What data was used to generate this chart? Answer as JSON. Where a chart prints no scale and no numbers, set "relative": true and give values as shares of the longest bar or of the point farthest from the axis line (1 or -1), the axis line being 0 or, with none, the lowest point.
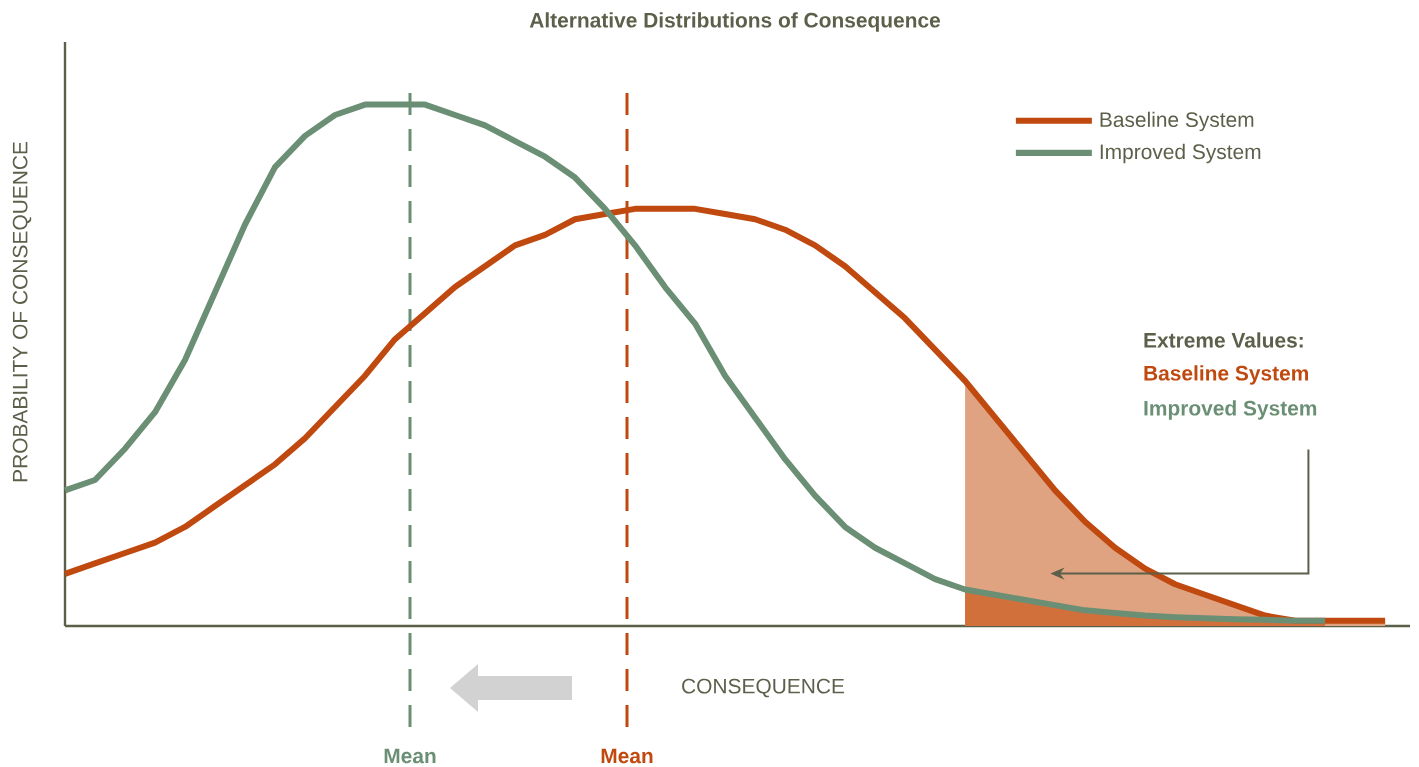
{
  "chart_data": {
    "type": "line",
    "relative": true,
    "title": "Alternative Distributions of Consequence",
    "xlabel": "CONSEQUENCE",
    "ylabel": "PROBABILITY OF CONSEQUENCE",
    "legend": "top right",
    "categories": [
      null,
      null,
      null,
      null,
      null,
      null,
      null,
      null,
      null,
      null,
      null,
      null,
      null,
      null,
      null,
      null,
      null,
      null,
      null,
      null,
      null,
      null,
      null,
      null,
      null,
      null,
      null,
      null,
      null,
      null,
      null,
      null,
      null,
      null,
      null,
      null,
      null,
      null,
      null,
      null,
      null,
      null,
      null,
      null,
      null
    ],
    "series": [
      {
        "type": "area",
        "color": "#e0a382",
        "values": [
          null,
          null,
          null,
          null,
          null,
          null,
          null,
          null,
          null,
          null,
          null,
          null,
          null,
          null,
          null,
          null,
          null,
          null,
          null,
          null,
          null,
          null,
          null,
          null,
          null,
          null,
          null,
          null,
          null,
          null,
          0.47,
          0.4,
          0.33,
          0.26,
          0.2,
          0.15,
          0.11,
          0.08,
          0.06,
          0.04,
          0.02,
          0.01,
          0.01,
          0.01,
          0.01
        ]
      },
      {
        "type": "area",
        "color": "#d2703c",
        "values": [
          null,
          null,
          null,
          null,
          null,
          null,
          null,
          null,
          null,
          null,
          null,
          null,
          null,
          null,
          null,
          null,
          null,
          null,
          null,
          null,
          null,
          null,
          null,
          null,
          null,
          null,
          null,
          null,
          null,
          null,
          0.07,
          0.06,
          0.05,
          0.04,
          0.03,
          0.025,
          0.02,
          0.017,
          0.015,
          0.013,
          0.012,
          0.01,
          0.01,
          null,
          null
        ]
      },
      {
        "name": "Baseline System",
        "color": "#c0490f",
        "values": [
          0.1,
          0.12,
          0.14,
          0.16,
          0.19,
          0.23,
          0.27,
          0.31,
          0.36,
          0.42,
          0.48,
          0.55,
          0.6,
          0.65,
          0.69,
          0.73,
          0.75,
          0.78,
          0.79,
          0.8,
          0.8,
          0.8,
          0.79,
          0.78,
          0.76,
          0.73,
          0.69,
          0.64,
          0.59,
          0.53,
          0.47,
          0.4,
          0.33,
          0.26,
          0.2,
          0.15,
          0.11,
          0.08,
          0.06,
          0.04,
          0.02,
          0.01,
          0.01,
          0.01,
          0.01
        ]
      },
      {
        "name": "Improved System",
        "color": "#6b8f74",
        "values": [
          0.26,
          0.28,
          0.34,
          0.41,
          0.51,
          0.64,
          0.77,
          0.88,
          0.94,
          0.98,
          1.0,
          1.0,
          1.0,
          0.98,
          0.96,
          0.93,
          0.9,
          0.86,
          0.8,
          0.73,
          0.65,
          0.58,
          0.48,
          0.4,
          0.32,
          0.25,
          0.19,
          0.15,
          0.12,
          0.09,
          0.07,
          0.06,
          0.05,
          0.04,
          0.03,
          0.025,
          0.02,
          0.017,
          0.015,
          0.013,
          0.012,
          0.01,
          0.01,
          null,
          null
        ]
      }
    ],
    "annotations": [
      "Extreme Values:",
      "Baseline System",
      "Improved System",
      "Mean",
      "Mean"
    ]
  }
}
